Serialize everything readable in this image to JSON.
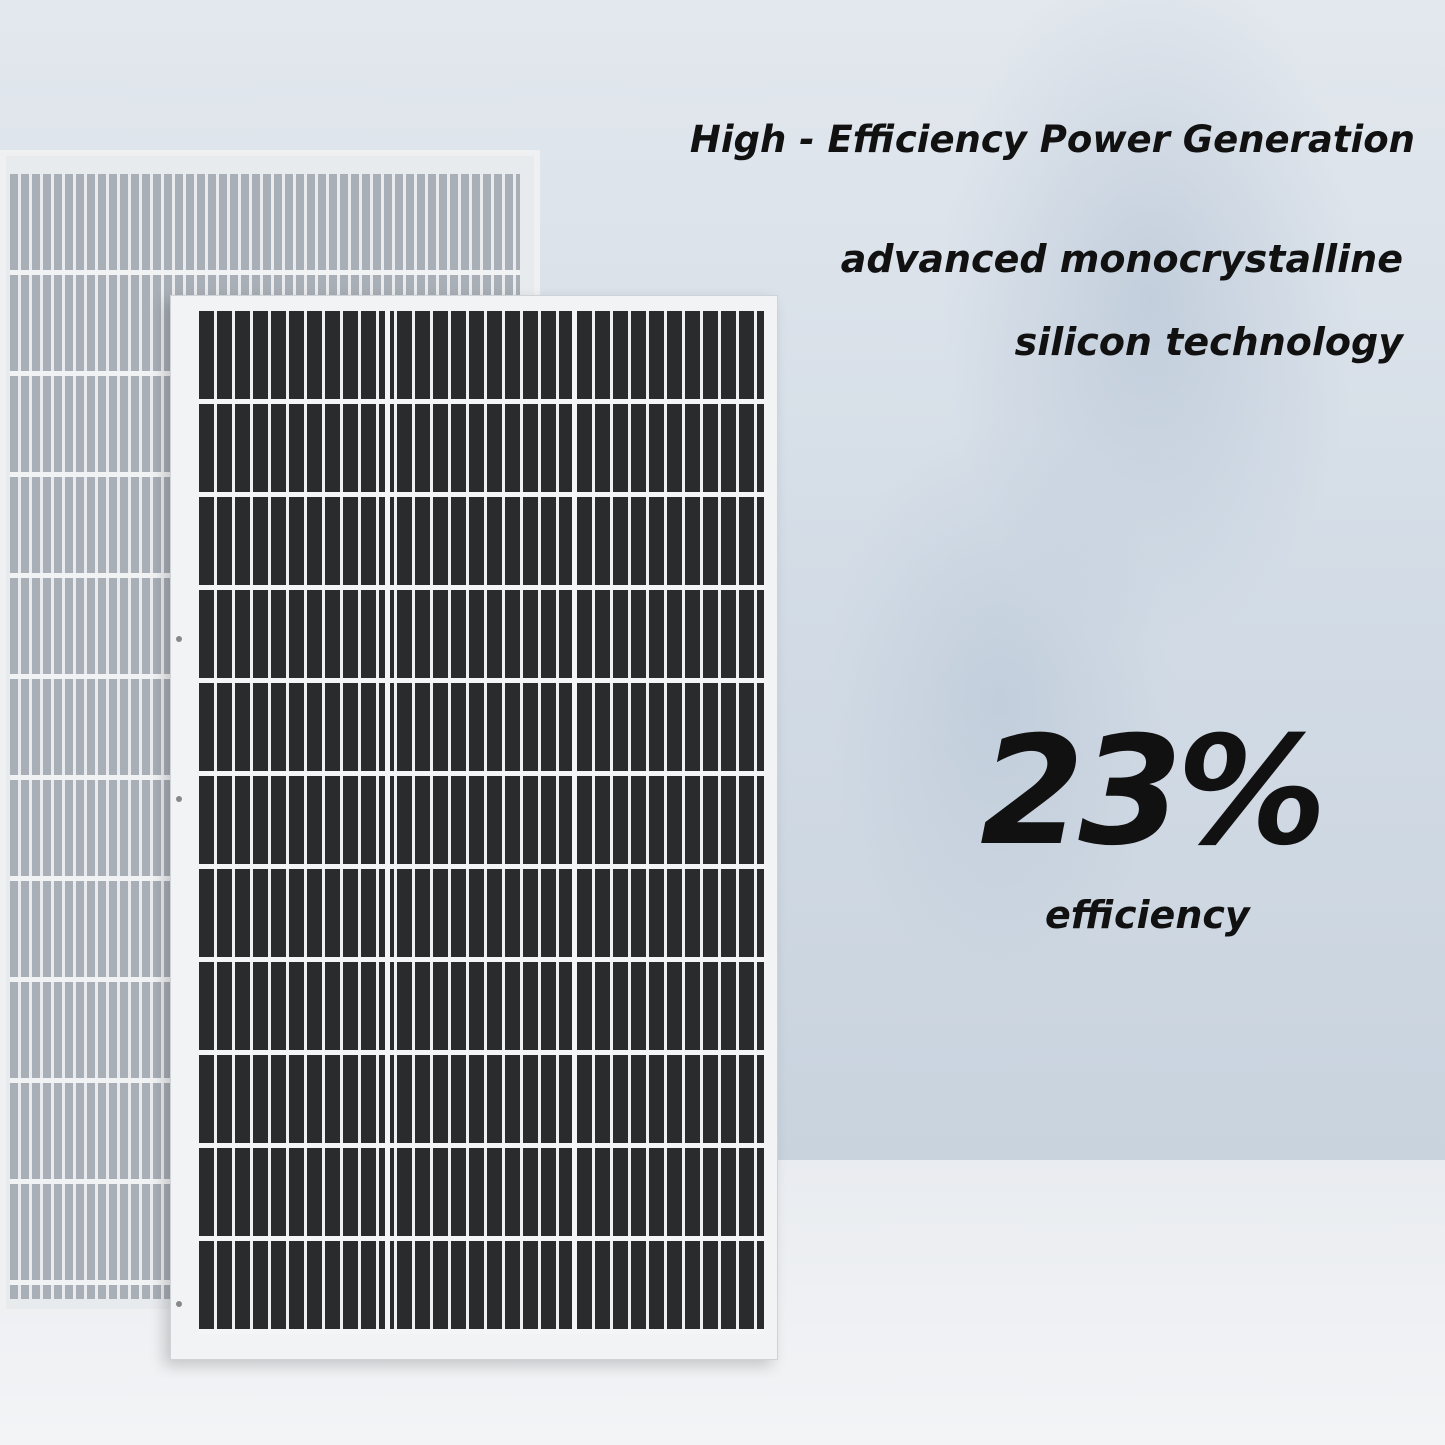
{
  "headline": "High - Efficiency Power Generation",
  "subtitle_line1": "advanced monocrystalline",
  "subtitle_line2": "silicon technology",
  "efficiency_value": "23%",
  "efficiency_label": "efficiency",
  "colors": {
    "text": "#111111",
    "cell": "#2a2b2d",
    "frame": "#f2f3f5"
  }
}
